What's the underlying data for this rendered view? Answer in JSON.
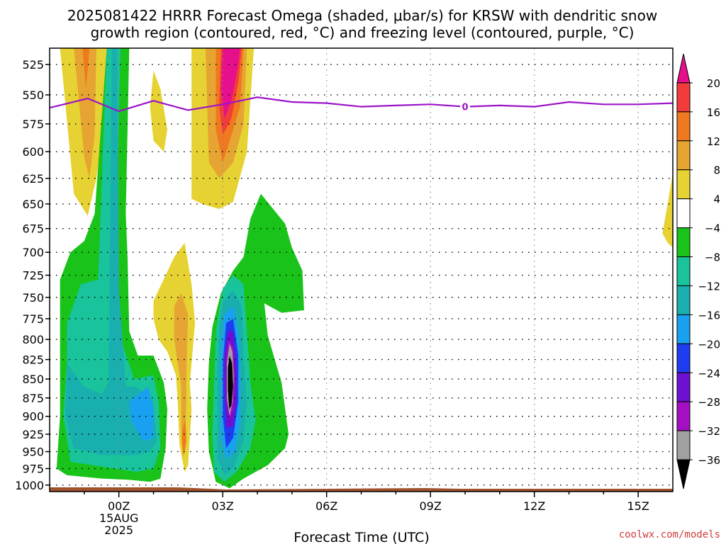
{
  "chart_data": {
    "type": "heatmap",
    "title_lines": [
      "2025081422 HRRR Forecast Omega (shaded, μbar/s) for KRSW with dendritic snow",
      "growth region (contoured, red, °C) and freezing level (contoured, purple, °C)"
    ],
    "xlabel": "Forecast Time (UTC)",
    "x_ticks": [
      {
        "hour": 0,
        "label": "00Z",
        "sub1": "15AUG",
        "sub2": "2025"
      },
      {
        "hour": 3,
        "label": "03Z"
      },
      {
        "hour": 6,
        "label": "06Z"
      },
      {
        "hour": 9,
        "label": "09Z"
      },
      {
        "hour": 12,
        "label": "12Z"
      },
      {
        "hour": 15,
        "label": "15Z"
      }
    ],
    "xlim_hours": [
      -2,
      16
    ],
    "y_ticks": [
      "525",
      "550",
      "575",
      "600",
      "625",
      "650",
      "675",
      "700",
      "725",
      "750",
      "775",
      "800",
      "825",
      "850",
      "875",
      "900",
      "925",
      "950",
      "975",
      "1000"
    ],
    "y_values": [
      525,
      550,
      575,
      600,
      625,
      650,
      675,
      700,
      725,
      750,
      775,
      800,
      825,
      850,
      875,
      900,
      925,
      950,
      975,
      1000
    ],
    "ylim_hpa": [
      1010,
      512
    ],
    "y_scale": "log-pressure",
    "grid": true,
    "colorbar": {
      "levels": [
        "20",
        "16",
        "12",
        "8",
        "4",
        "−4",
        "−8",
        "−12",
        "−16",
        "−20",
        "−24",
        "−28",
        "−32",
        "−36"
      ],
      "level_values": [
        20,
        16,
        12,
        8,
        4,
        -4,
        -8,
        -12,
        -16,
        -20,
        -24,
        -28,
        -32,
        -36
      ],
      "colors": [
        "#e60f8c",
        "#f23c3c",
        "#f0781e",
        "#e6a532",
        "#e6d232",
        "#ffffff",
        "#19c319",
        "#19c39b",
        "#19afaf",
        "#19a0f0",
        "#1e3cf0",
        "#6e0fd2",
        "#a50fc3",
        "#a0a0a0",
        "#000000"
      ]
    },
    "freezing_level": {
      "label": "0",
      "color": "#9b14c8",
      "points": [
        [
          -2,
          561
        ],
        [
          -0.9,
          553
        ],
        [
          0,
          564
        ],
        [
          1,
          555
        ],
        [
          2,
          563
        ],
        [
          3,
          558
        ],
        [
          4,
          552
        ],
        [
          5,
          556
        ],
        [
          6,
          557
        ],
        [
          7,
          560
        ],
        [
          8,
          559
        ],
        [
          9,
          558
        ],
        [
          10,
          560
        ],
        [
          11,
          559
        ],
        [
          12,
          560
        ],
        [
          13,
          556
        ],
        [
          14,
          558
        ],
        [
          15,
          558
        ],
        [
          16,
          557
        ]
      ]
    },
    "omega_regions": [
      {
        "value": 6,
        "color": "#e6d232",
        "points": [
          [
            -1.7,
            512
          ],
          [
            -1.3,
            640
          ],
          [
            -0.9,
            662
          ],
          [
            -0.65,
            625
          ],
          [
            -0.4,
            565
          ],
          [
            -0.35,
            512
          ]
        ]
      },
      {
        "value": 10,
        "color": "#e6a532",
        "points": [
          [
            -1.3,
            512
          ],
          [
            -1.0,
            605
          ],
          [
            -0.85,
            625
          ],
          [
            -0.7,
            585
          ],
          [
            -0.65,
            512
          ]
        ]
      },
      {
        "value": 14,
        "color": "#f0781e",
        "points": [
          [
            -1.05,
            512
          ],
          [
            -0.95,
            545
          ],
          [
            -0.85,
            512
          ]
        ]
      },
      {
        "value": 6,
        "color": "#e6d232",
        "points": [
          [
            0.9,
            560
          ],
          [
            1.0,
            530
          ],
          [
            1.2,
            545
          ],
          [
            1.4,
            580
          ],
          [
            1.3,
            600
          ],
          [
            1.0,
            590
          ]
        ]
      },
      {
        "value": 6,
        "color": "#e6d232",
        "points": [
          [
            2.1,
            512
          ],
          [
            2.1,
            645
          ],
          [
            2.4,
            650
          ],
          [
            2.9,
            655
          ],
          [
            3.3,
            648
          ],
          [
            3.7,
            600
          ],
          [
            3.9,
            512
          ]
        ]
      },
      {
        "value": 10,
        "color": "#e6a532",
        "points": [
          [
            2.5,
            512
          ],
          [
            2.6,
            610
          ],
          [
            2.9,
            625
          ],
          [
            3.3,
            610
          ],
          [
            3.6,
            575
          ],
          [
            3.7,
            512
          ]
        ]
      },
      {
        "value": 14,
        "color": "#f0781e",
        "points": [
          [
            2.8,
            512
          ],
          [
            2.8,
            580
          ],
          [
            3.0,
            610
          ],
          [
            3.2,
            590
          ],
          [
            3.5,
            560
          ],
          [
            3.6,
            512
          ]
        ]
      },
      {
        "value": 18,
        "color": "#f23c3c",
        "points": [
          [
            2.95,
            512
          ],
          [
            2.9,
            560
          ],
          [
            3.0,
            585
          ],
          [
            3.25,
            570
          ],
          [
            3.45,
            540
          ],
          [
            3.55,
            512
          ]
        ]
      },
      {
        "value": 22,
        "color": "#e60f8c",
        "points": [
          [
            3.0,
            512
          ],
          [
            2.95,
            545
          ],
          [
            3.05,
            570
          ],
          [
            3.25,
            555
          ],
          [
            3.45,
            525
          ],
          [
            3.5,
            512
          ]
        ]
      },
      {
        "value": 6,
        "color": "#e6d232",
        "points": [
          [
            1.0,
            754
          ],
          [
            1.6,
            705
          ],
          [
            1.9,
            690
          ],
          [
            2.1,
            735
          ],
          [
            2.2,
            780
          ],
          [
            2.05,
            855
          ],
          [
            2.1,
            890
          ],
          [
            2.0,
            970
          ],
          [
            1.9,
            980
          ],
          [
            1.75,
            940
          ],
          [
            1.7,
            880
          ],
          [
            1.65,
            845
          ],
          [
            1.4,
            815
          ],
          [
            1.15,
            800
          ],
          [
            1.0,
            775
          ]
        ]
      },
      {
        "value": 10,
        "color": "#e6a532",
        "points": [
          [
            1.6,
            760
          ],
          [
            1.8,
            745
          ],
          [
            2.0,
            770
          ],
          [
            1.95,
            840
          ],
          [
            1.95,
            880
          ],
          [
            1.9,
            940
          ],
          [
            1.85,
            960
          ],
          [
            1.8,
            920
          ],
          [
            1.8,
            860
          ],
          [
            1.6,
            800
          ]
        ]
      },
      {
        "value": 14,
        "color": "#f0781e",
        "points": [
          [
            1.85,
            915
          ],
          [
            1.92,
            905
          ],
          [
            1.95,
            935
          ],
          [
            1.88,
            955
          ],
          [
            1.82,
            935
          ]
        ]
      },
      {
        "value": -6,
        "color": "#19c319",
        "points": [
          [
            -1.7,
            730
          ],
          [
            -1.4,
            700
          ],
          [
            -1.0,
            688
          ],
          [
            -0.7,
            660
          ],
          [
            -0.35,
            512
          ],
          [
            0.3,
            512
          ],
          [
            0.2,
            660
          ],
          [
            0.25,
            705
          ],
          [
            0.3,
            790
          ],
          [
            0.55,
            820
          ],
          [
            1.0,
            820
          ],
          [
            1.3,
            855
          ],
          [
            1.4,
            890
          ],
          [
            1.35,
            945
          ],
          [
            1.2,
            990
          ],
          [
            0.9,
            995
          ],
          [
            0.3,
            992
          ],
          [
            -0.5,
            990
          ],
          [
            -1.5,
            985
          ],
          [
            -1.8,
            975
          ],
          [
            -1.7,
            900
          ]
        ]
      },
      {
        "value": -10,
        "color": "#19c39b",
        "points": [
          [
            -1.5,
            780
          ],
          [
            -1.1,
            735
          ],
          [
            -0.6,
            730
          ],
          [
            -0.35,
            512
          ],
          [
            0.05,
            512
          ],
          [
            -0.1,
            700
          ],
          [
            0.05,
            800
          ],
          [
            0.45,
            850
          ],
          [
            1.0,
            845
          ],
          [
            1.15,
            880
          ],
          [
            1.2,
            945
          ],
          [
            1.0,
            975
          ],
          [
            0.5,
            980
          ],
          [
            -0.5,
            972
          ],
          [
            -1.4,
            965
          ],
          [
            -1.6,
            900
          ],
          [
            -1.5,
            830
          ]
        ]
      },
      {
        "value": -14,
        "color": "#19afaf",
        "points": [
          [
            -1.5,
            830
          ],
          [
            -1.0,
            860
          ],
          [
            -0.5,
            870
          ],
          [
            -0.3,
            855
          ],
          [
            -0.2,
            512
          ],
          [
            -0.05,
            512
          ],
          [
            0.0,
            740
          ],
          [
            0.2,
            860
          ],
          [
            0.5,
            860
          ],
          [
            1.0,
            880
          ],
          [
            1.1,
            935
          ],
          [
            0.9,
            950
          ],
          [
            0.5,
            955
          ],
          [
            -0.5,
            955
          ],
          [
            -1.3,
            945
          ],
          [
            -1.55,
            900
          ]
        ]
      },
      {
        "value": -18,
        "color": "#19a0f0",
        "points": [
          [
            0.3,
            880
          ],
          [
            0.85,
            860
          ],
          [
            1.0,
            890
          ],
          [
            1.0,
            930
          ],
          [
            0.7,
            935
          ],
          [
            0.35,
            905
          ]
        ]
      },
      {
        "value": -6,
        "color": "#19c319",
        "points": [
          [
            3.8,
            665
          ],
          [
            4.1,
            640
          ],
          [
            4.8,
            670
          ],
          [
            5.0,
            695
          ],
          [
            5.3,
            720
          ],
          [
            5.35,
            765
          ],
          [
            4.7,
            768
          ],
          [
            4.2,
            757
          ],
          [
            4.3,
            795
          ],
          [
            4.7,
            855
          ],
          [
            4.9,
            925
          ],
          [
            4.8,
            945
          ],
          [
            4.3,
            970
          ],
          [
            3.6,
            990
          ],
          [
            3.2,
            1005
          ],
          [
            2.8,
            995
          ],
          [
            2.6,
            950
          ],
          [
            2.55,
            890
          ],
          [
            2.6,
            830
          ],
          [
            2.7,
            785
          ],
          [
            2.95,
            745
          ],
          [
            3.3,
            720
          ],
          [
            3.6,
            705
          ]
        ]
      },
      {
        "value": -10,
        "color": "#19c39b",
        "points": [
          [
            3.0,
            740
          ],
          [
            3.3,
            725
          ],
          [
            3.6,
            735
          ],
          [
            3.7,
            790
          ],
          [
            3.8,
            855
          ],
          [
            3.95,
            905
          ],
          [
            3.8,
            945
          ],
          [
            3.4,
            980
          ],
          [
            3.05,
            995
          ],
          [
            2.75,
            980
          ],
          [
            2.7,
            925
          ],
          [
            2.75,
            855
          ],
          [
            2.8,
            790
          ]
        ]
      },
      {
        "value": -14,
        "color": "#19afaf",
        "points": [
          [
            3.0,
            755
          ],
          [
            3.3,
            742
          ],
          [
            3.55,
            760
          ],
          [
            3.6,
            820
          ],
          [
            3.7,
            880
          ],
          [
            3.6,
            935
          ],
          [
            3.3,
            975
          ],
          [
            3.05,
            985
          ],
          [
            2.85,
            960
          ],
          [
            2.85,
            900
          ],
          [
            2.85,
            840
          ],
          [
            2.9,
            780
          ]
        ]
      },
      {
        "value": -18,
        "color": "#19a0f0",
        "points": [
          [
            3.05,
            770
          ],
          [
            3.3,
            760
          ],
          [
            3.45,
            790
          ],
          [
            3.5,
            850
          ],
          [
            3.5,
            910
          ],
          [
            3.35,
            950
          ],
          [
            3.1,
            960
          ],
          [
            2.95,
            930
          ],
          [
            2.95,
            860
          ],
          [
            2.95,
            800
          ]
        ]
      },
      {
        "value": -22,
        "color": "#1e3cf0",
        "points": [
          [
            3.1,
            780
          ],
          [
            3.3,
            775
          ],
          [
            3.45,
            820
          ],
          [
            3.45,
            880
          ],
          [
            3.3,
            930
          ],
          [
            3.1,
            945
          ],
          [
            3.0,
            900
          ],
          [
            3.0,
            830
          ]
        ]
      },
      {
        "value": -26,
        "color": "#6e0fd2",
        "points": [
          [
            3.15,
            790
          ],
          [
            3.3,
            790
          ],
          [
            3.4,
            835
          ],
          [
            3.4,
            880
          ],
          [
            3.3,
            915
          ],
          [
            3.1,
            915
          ],
          [
            3.05,
            860
          ],
          [
            3.05,
            820
          ]
        ]
      },
      {
        "value": -30,
        "color": "#a50fc3",
        "points": [
          [
            3.15,
            800
          ],
          [
            3.3,
            810
          ],
          [
            3.35,
            850
          ],
          [
            3.3,
            890
          ],
          [
            3.2,
            905
          ],
          [
            3.1,
            880
          ],
          [
            3.1,
            830
          ]
        ]
      },
      {
        "value": -34,
        "color": "#a0a0a0",
        "points": [
          [
            3.2,
            805
          ],
          [
            3.28,
            815
          ],
          [
            3.32,
            850
          ],
          [
            3.28,
            880
          ],
          [
            3.2,
            900
          ],
          [
            3.12,
            875
          ],
          [
            3.12,
            830
          ]
        ]
      },
      {
        "value": -38,
        "color": "#000000",
        "points": [
          [
            3.2,
            820
          ],
          [
            3.27,
            830
          ],
          [
            3.3,
            860
          ],
          [
            3.25,
            885
          ],
          [
            3.19,
            890
          ],
          [
            3.15,
            865
          ],
          [
            3.15,
            835
          ]
        ]
      },
      {
        "value": 6,
        "color": "#e6d232",
        "points": [
          [
            15.7,
            680
          ],
          [
            15.85,
            650
          ],
          [
            16.0,
            620
          ],
          [
            16.0,
            695
          ],
          [
            15.85,
            690
          ]
        ]
      }
    ],
    "ground_color": "#a0522d"
  },
  "credit": "coolwx.com/models"
}
